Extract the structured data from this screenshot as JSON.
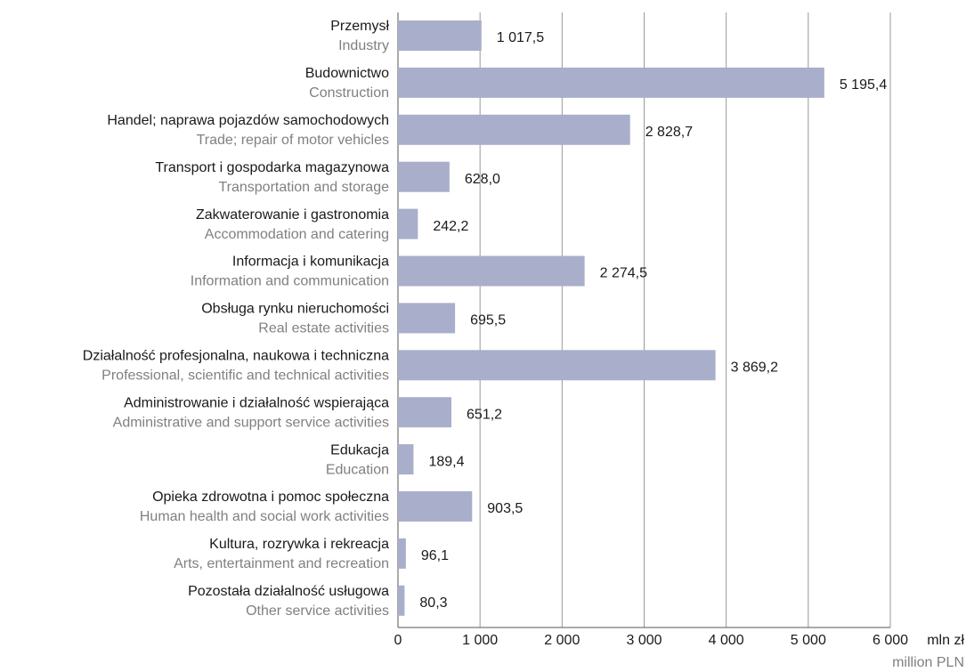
{
  "chart_data": {
    "type": "barh",
    "categories": [
      "Przemysł",
      "Budownictwo",
      "Handel; naprawa pojazdów samochodowych",
      "Transport i gospodarka magazynowa",
      "Zakwaterowanie i gastronomia",
      "Informacja i komunikacja",
      "Obsługa rynku nieruchomości",
      "Działalność profesjonalna, naukowa i techniczna",
      "Administrowanie i działalność wspierająca",
      "Edukacja",
      "Opieka zdrowotna i pomoc społeczna",
      "Kultura, rozrywka i rekreacja",
      "Pozostała działalność usługowa"
    ],
    "categories_en": [
      "Industry",
      "Construction",
      "Trade; repair of motor vehicles",
      "Transportation and storage",
      "Accommodation and catering",
      "Information and communication",
      "Real estate activities",
      "Professional, scientific and technical activities",
      "Administrative and support service activities",
      "Education",
      "Human health and social work activities",
      "Arts, entertainment and recreation",
      "Other service activities"
    ],
    "values": [
      1017.5,
      5195.4,
      2828.7,
      628.0,
      242.2,
      2274.5,
      695.5,
      3869.2,
      651.2,
      189.4,
      903.5,
      96.1,
      80.3
    ],
    "value_labels": [
      "1 017,5",
      "5 195,4",
      "2 828,7",
      "628,0",
      "242,2",
      "2 274,5",
      "695,5",
      "3 869,2",
      "651,2",
      "189,4",
      "903,5",
      "96,1",
      "80,3"
    ],
    "color": "#a9aecb",
    "xlim": [
      0,
      6000
    ],
    "xticks": [
      0,
      {
        "value": 1000,
        "label": "1 000"
      },
      {
        "value": 2000,
        "label": "2 000"
      },
      {
        "value": 3000,
        "label": "3 000"
      },
      {
        "value": 4000,
        "label": "4 000"
      },
      {
        "value": 5000,
        "label": "5 000"
      },
      {
        "value": 6000,
        "label": "6 000"
      }
    ],
    "xlabel": "mln zł",
    "xlabel_en": "million PLN",
    "grid": true
  }
}
